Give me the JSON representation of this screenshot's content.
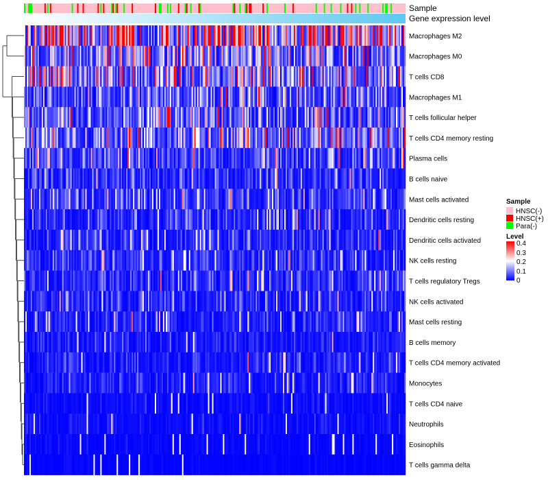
{
  "chart_data": {
    "type": "heatmap",
    "annotations": [
      "Sample",
      "Gene expression level"
    ],
    "rows": [
      "Macrophages M2",
      "Macrophages M0",
      "T cells CD8",
      "Macrophages M1",
      "T cells follicular helper",
      "T cells CD4 memory resting",
      "Plasma cells",
      "B cells naive",
      "Mast cells activated",
      "Dendritic cells resting",
      "Dendritic cells activated",
      "NK cells resting",
      "T cells regulatory  Tregs",
      "NK cells activated",
      "Mast cells resting",
      "B cells memory",
      "T cells CD4 memory activated",
      "Monocytes",
      "T cells CD4 naive",
      "Neutrophils",
      "Eosinophils",
      "T cells gamma delta"
    ],
    "row_mean_level": [
      0.25,
      0.12,
      0.13,
      0.08,
      0.08,
      0.1,
      0.06,
      0.04,
      0.05,
      0.035,
      0.035,
      0.04,
      0.04,
      0.03,
      0.03,
      0.02,
      0.025,
      0.025,
      0.01,
      0.012,
      0.006,
      0.003
    ],
    "n_columns": 280,
    "legend": {
      "sample_title": "Sample",
      "sample_levels": [
        {
          "label": "HNSC(-)",
          "color": "#FFC0CB"
        },
        {
          "label": "HNSC(+)",
          "color": "#FF0000"
        },
        {
          "label": "Para(-)",
          "color": "#00FF00"
        }
      ],
      "level_title": "Level",
      "level_ticks": [
        "0.4",
        "0.3",
        "0.2",
        "0.1",
        "0"
      ],
      "level_range": [
        0,
        0.4
      ],
      "colors": {
        "low": "#0000FF",
        "mid": "#FFFFFF",
        "high": "#FF0000",
        "expr_low": "#FFFFFF",
        "expr_high": "#5EC8F0"
      }
    }
  }
}
